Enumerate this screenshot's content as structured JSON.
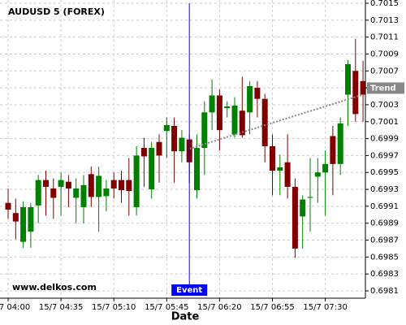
{
  "chart_data": {
    "type": "candlestick",
    "title": "AUDUSD 5 (FOREX)",
    "watermark": "www.delkos.com",
    "xlabel": "Date",
    "categories": [
      "15/7 04:00",
      null,
      null,
      null,
      null,
      null,
      null,
      "15/7 04:35",
      null,
      null,
      null,
      null,
      null,
      null,
      "15/7 05:10",
      null,
      null,
      null,
      null,
      null,
      null,
      "15/7 05:45",
      null,
      null,
      null,
      null,
      null,
      null,
      "15/7 06:20",
      null,
      null,
      null,
      null,
      null,
      null,
      "15/7 06:55",
      null,
      null,
      null,
      null,
      null,
      null,
      "15/7 07:30",
      null,
      null,
      null,
      null,
      null
    ],
    "open": [
      0.69914,
      0.69902,
      0.69868,
      0.6988,
      0.69911,
      0.69941,
      0.69931,
      0.69933,
      0.69939,
      0.6992,
      0.69909,
      0.69948,
      0.69921,
      0.69922,
      0.69941,
      0.69941,
      0.69941,
      0.69909,
      0.69979,
      0.6993,
      0.69986,
      0.69999,
      0.70005,
      0.69975,
      0.69989,
      0.69929,
      0.69979,
      0.70021,
      0.70041,
      0.70026,
      0.69995,
      0.70023,
      0.70021,
      0.7005,
      0.70037,
      0.69981,
      0.69952,
      0.69962,
      0.69933,
      0.69898,
      0.6992,
      0.69945,
      0.6995,
      0.69993,
      0.6996,
      0.70042,
      0.7007,
      0.70058
    ],
    "high": [
      0.69931,
      0.69919,
      0.69916,
      0.69914,
      0.69947,
      0.69952,
      0.69943,
      0.6995,
      0.69947,
      0.69943,
      0.69947,
      0.69957,
      0.69957,
      0.69941,
      0.6995,
      0.69952,
      0.69967,
      0.69981,
      0.69991,
      0.69986,
      0.69995,
      0.70015,
      0.70015,
      0.7,
      0.69995,
      0.69995,
      0.70034,
      0.7006,
      0.70048,
      0.70034,
      0.70039,
      0.70063,
      0.70058,
      0.70058,
      0.70043,
      0.69995,
      0.69971,
      0.69995,
      0.69943,
      0.69923,
      0.69967,
      0.69967,
      0.69976,
      0.70005,
      0.70015,
      0.70083,
      0.70108,
      0.70082
    ],
    "low": [
      0.69895,
      0.69871,
      0.69861,
      0.69861,
      0.6989,
      0.69899,
      0.69895,
      0.69899,
      0.69909,
      0.6989,
      0.6989,
      0.69909,
      0.6988,
      0.69904,
      0.69919,
      0.69914,
      0.69899,
      0.69899,
      0.69933,
      0.69919,
      0.69938,
      0.69967,
      0.69938,
      0.69962,
      0.69938,
      0.69919,
      0.69947,
      0.7,
      0.69976,
      0.70015,
      0.69991,
      0.69991,
      0.69995,
      0.70015,
      0.69962,
      0.69923,
      0.69923,
      0.69919,
      0.69849,
      0.6986,
      0.6988,
      0.69914,
      0.69899,
      0.69923,
      0.69947,
      0.70005,
      0.7001,
      0.7001
    ],
    "close": [
      0.69906,
      0.69892,
      0.69909,
      0.69909,
      0.69941,
      0.69933,
      0.6992,
      0.69941,
      0.69931,
      0.69931,
      0.69935,
      0.69921,
      0.69946,
      0.69931,
      0.69931,
      0.69929,
      0.69928,
      0.6997,
      0.69969,
      0.69979,
      0.6997,
      0.70006,
      0.69975,
      0.69991,
      0.69962,
      0.69979,
      0.70021,
      0.70041,
      0.7,
      0.70028,
      0.70029,
      0.69994,
      0.70052,
      0.70037,
      0.69981,
      0.69952,
      0.69956,
      0.69933,
      0.6986,
      0.69918,
      0.69921,
      0.6995,
      0.6996,
      0.6996,
      0.70008,
      0.70078,
      0.70019,
      0.70042
    ],
    "up_color": "#008000",
    "down_color": "#800000",
    "ylim": [
      0.6981,
      0.7015
    ],
    "yticks": [
      0.6981,
      0.6983,
      0.6985,
      0.6987,
      0.6989,
      0.6991,
      0.6993,
      0.6995,
      0.6997,
      0.6999,
      0.7001,
      0.7003,
      0.7005,
      0.7007,
      0.7009,
      0.7011,
      0.7013,
      0.7015
    ],
    "grid": true,
    "event": {
      "label": "Event",
      "index": 24,
      "color": "#0000ff"
    },
    "trend": {
      "label": "Trend",
      "start_index": 24,
      "start": 0.69978,
      "end_index": 47,
      "end": 0.70042,
      "color": "#888888"
    }
  }
}
